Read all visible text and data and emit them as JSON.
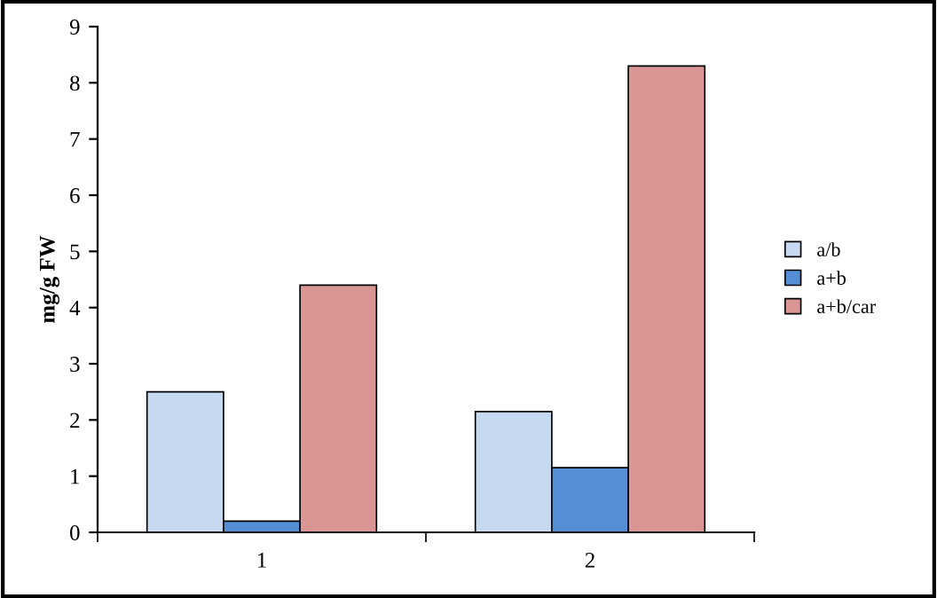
{
  "chart_data": {
    "type": "bar",
    "categories": [
      "1",
      "2"
    ],
    "ylabel": "mg/g FW",
    "ylim": [
      0,
      9
    ],
    "yticks": [
      0,
      1,
      2,
      3,
      4,
      5,
      6,
      7,
      8,
      9
    ],
    "grid": false,
    "legend": "right",
    "series": [
      {
        "name": "a/b",
        "color": "#c6d9f1",
        "values": [
          2.5,
          2.15
        ]
      },
      {
        "name": "a+b",
        "color": "#558ed5",
        "values": [
          0.2,
          1.15
        ]
      },
      {
        "name": "a+b/car",
        "color": "#d99694",
        "values": [
          4.4,
          8.3
        ]
      }
    ]
  }
}
